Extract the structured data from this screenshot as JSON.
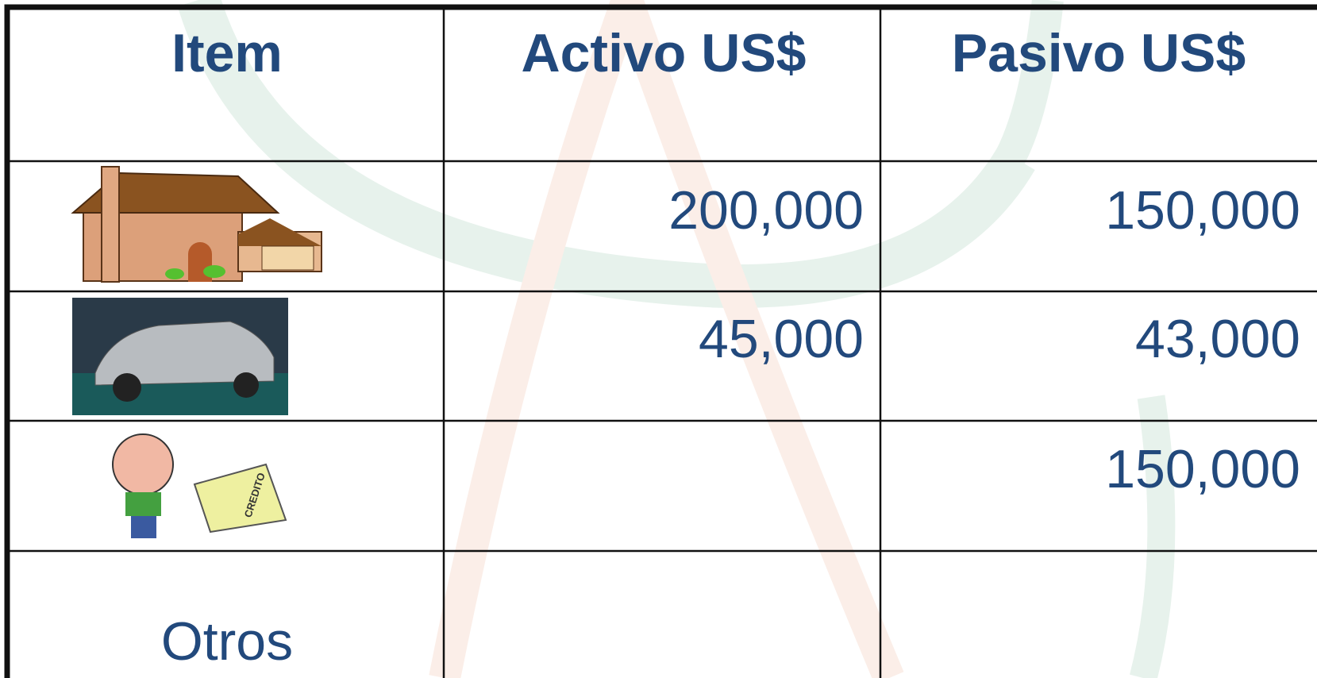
{
  "table": {
    "header": [
      "Item",
      "Activo US$",
      "Pasivo US$"
    ],
    "rows": [
      {
        "activo": "200,000",
        "pasivo": "150,000"
      },
      {
        "activo": "45,000",
        "pasivo": "43,000"
      },
      {
        "pasivo": "150,000",
        "icon_text": "CREDITO"
      },
      {
        "item": "Otros"
      }
    ]
  }
}
